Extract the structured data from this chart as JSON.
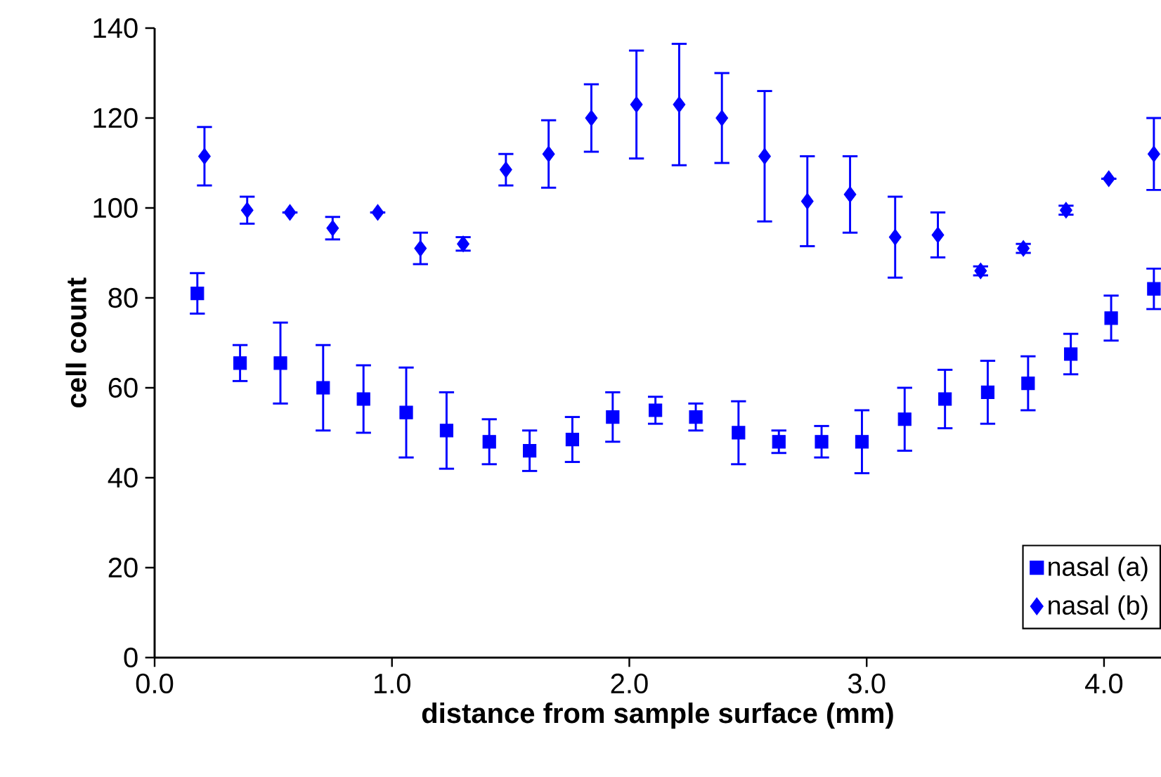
{
  "chart_data": {
    "type": "scatter",
    "xlabel": "distance from sample surface (mm)",
    "ylabel": "cell count",
    "xlim": [
      0,
      4.24
    ],
    "ylim": [
      0,
      140
    ],
    "xticks": [
      {
        "value": 0,
        "label": "0.0"
      },
      {
        "value": 1,
        "label": "1.0"
      },
      {
        "value": 2,
        "label": "2.0"
      },
      {
        "value": 3,
        "label": "3.0"
      },
      {
        "value": 4,
        "label": "4.0"
      }
    ],
    "yticks": [
      0,
      20,
      40,
      60,
      80,
      100,
      120,
      140
    ],
    "grid": false,
    "legend": "bottom right",
    "series": [
      {
        "name": "nasal (a)",
        "color": "#0000ff",
        "marker": "square",
        "x": [
          0.18,
          0.36,
          0.53,
          0.71,
          0.88,
          1.06,
          1.23,
          1.41,
          1.58,
          1.76,
          1.93,
          2.11,
          2.28,
          2.46,
          2.63,
          2.81,
          2.98,
          3.16,
          3.33,
          3.51,
          3.68,
          3.86,
          4.03,
          4.21
        ],
        "values": [
          81,
          65.5,
          65.5,
          60,
          57.5,
          54.5,
          50.5,
          48,
          46,
          48.5,
          53.5,
          55,
          53.5,
          50,
          48,
          48,
          48,
          53,
          57.5,
          59,
          61,
          67.5,
          75.5,
          82
        ],
        "errors": [
          4.5,
          4,
          9,
          9.5,
          7.5,
          10,
          8.5,
          5,
          4.5,
          5,
          5.5,
          3,
          3,
          7,
          2.5,
          3.5,
          7,
          7,
          6.5,
          7,
          6,
          4.5,
          5,
          4.5
        ]
      },
      {
        "name": "nasal (b)",
        "color": "#0000ff",
        "marker": "diamond",
        "x": [
          0.21,
          0.39,
          0.57,
          0.75,
          0.94,
          1.12,
          1.3,
          1.48,
          1.66,
          1.84,
          2.03,
          2.21,
          2.39,
          2.57,
          2.75,
          2.93,
          3.12,
          3.3,
          3.48,
          3.66,
          3.84,
          4.02,
          4.21
        ],
        "values": [
          111.5,
          99.5,
          99,
          95.5,
          99,
          91,
          92,
          108.5,
          112,
          120,
          123,
          123,
          120,
          111.5,
          101.5,
          103,
          93.5,
          94,
          86,
          91,
          99.5,
          106.5,
          112
        ],
        "errors": [
          6.5,
          3,
          null,
          2.5,
          null,
          3.5,
          1.5,
          3.5,
          7.5,
          7.5,
          12,
          13.5,
          10,
          14.5,
          10,
          8.5,
          9,
          5,
          1,
          1,
          1,
          null,
          8
        ]
      }
    ]
  }
}
